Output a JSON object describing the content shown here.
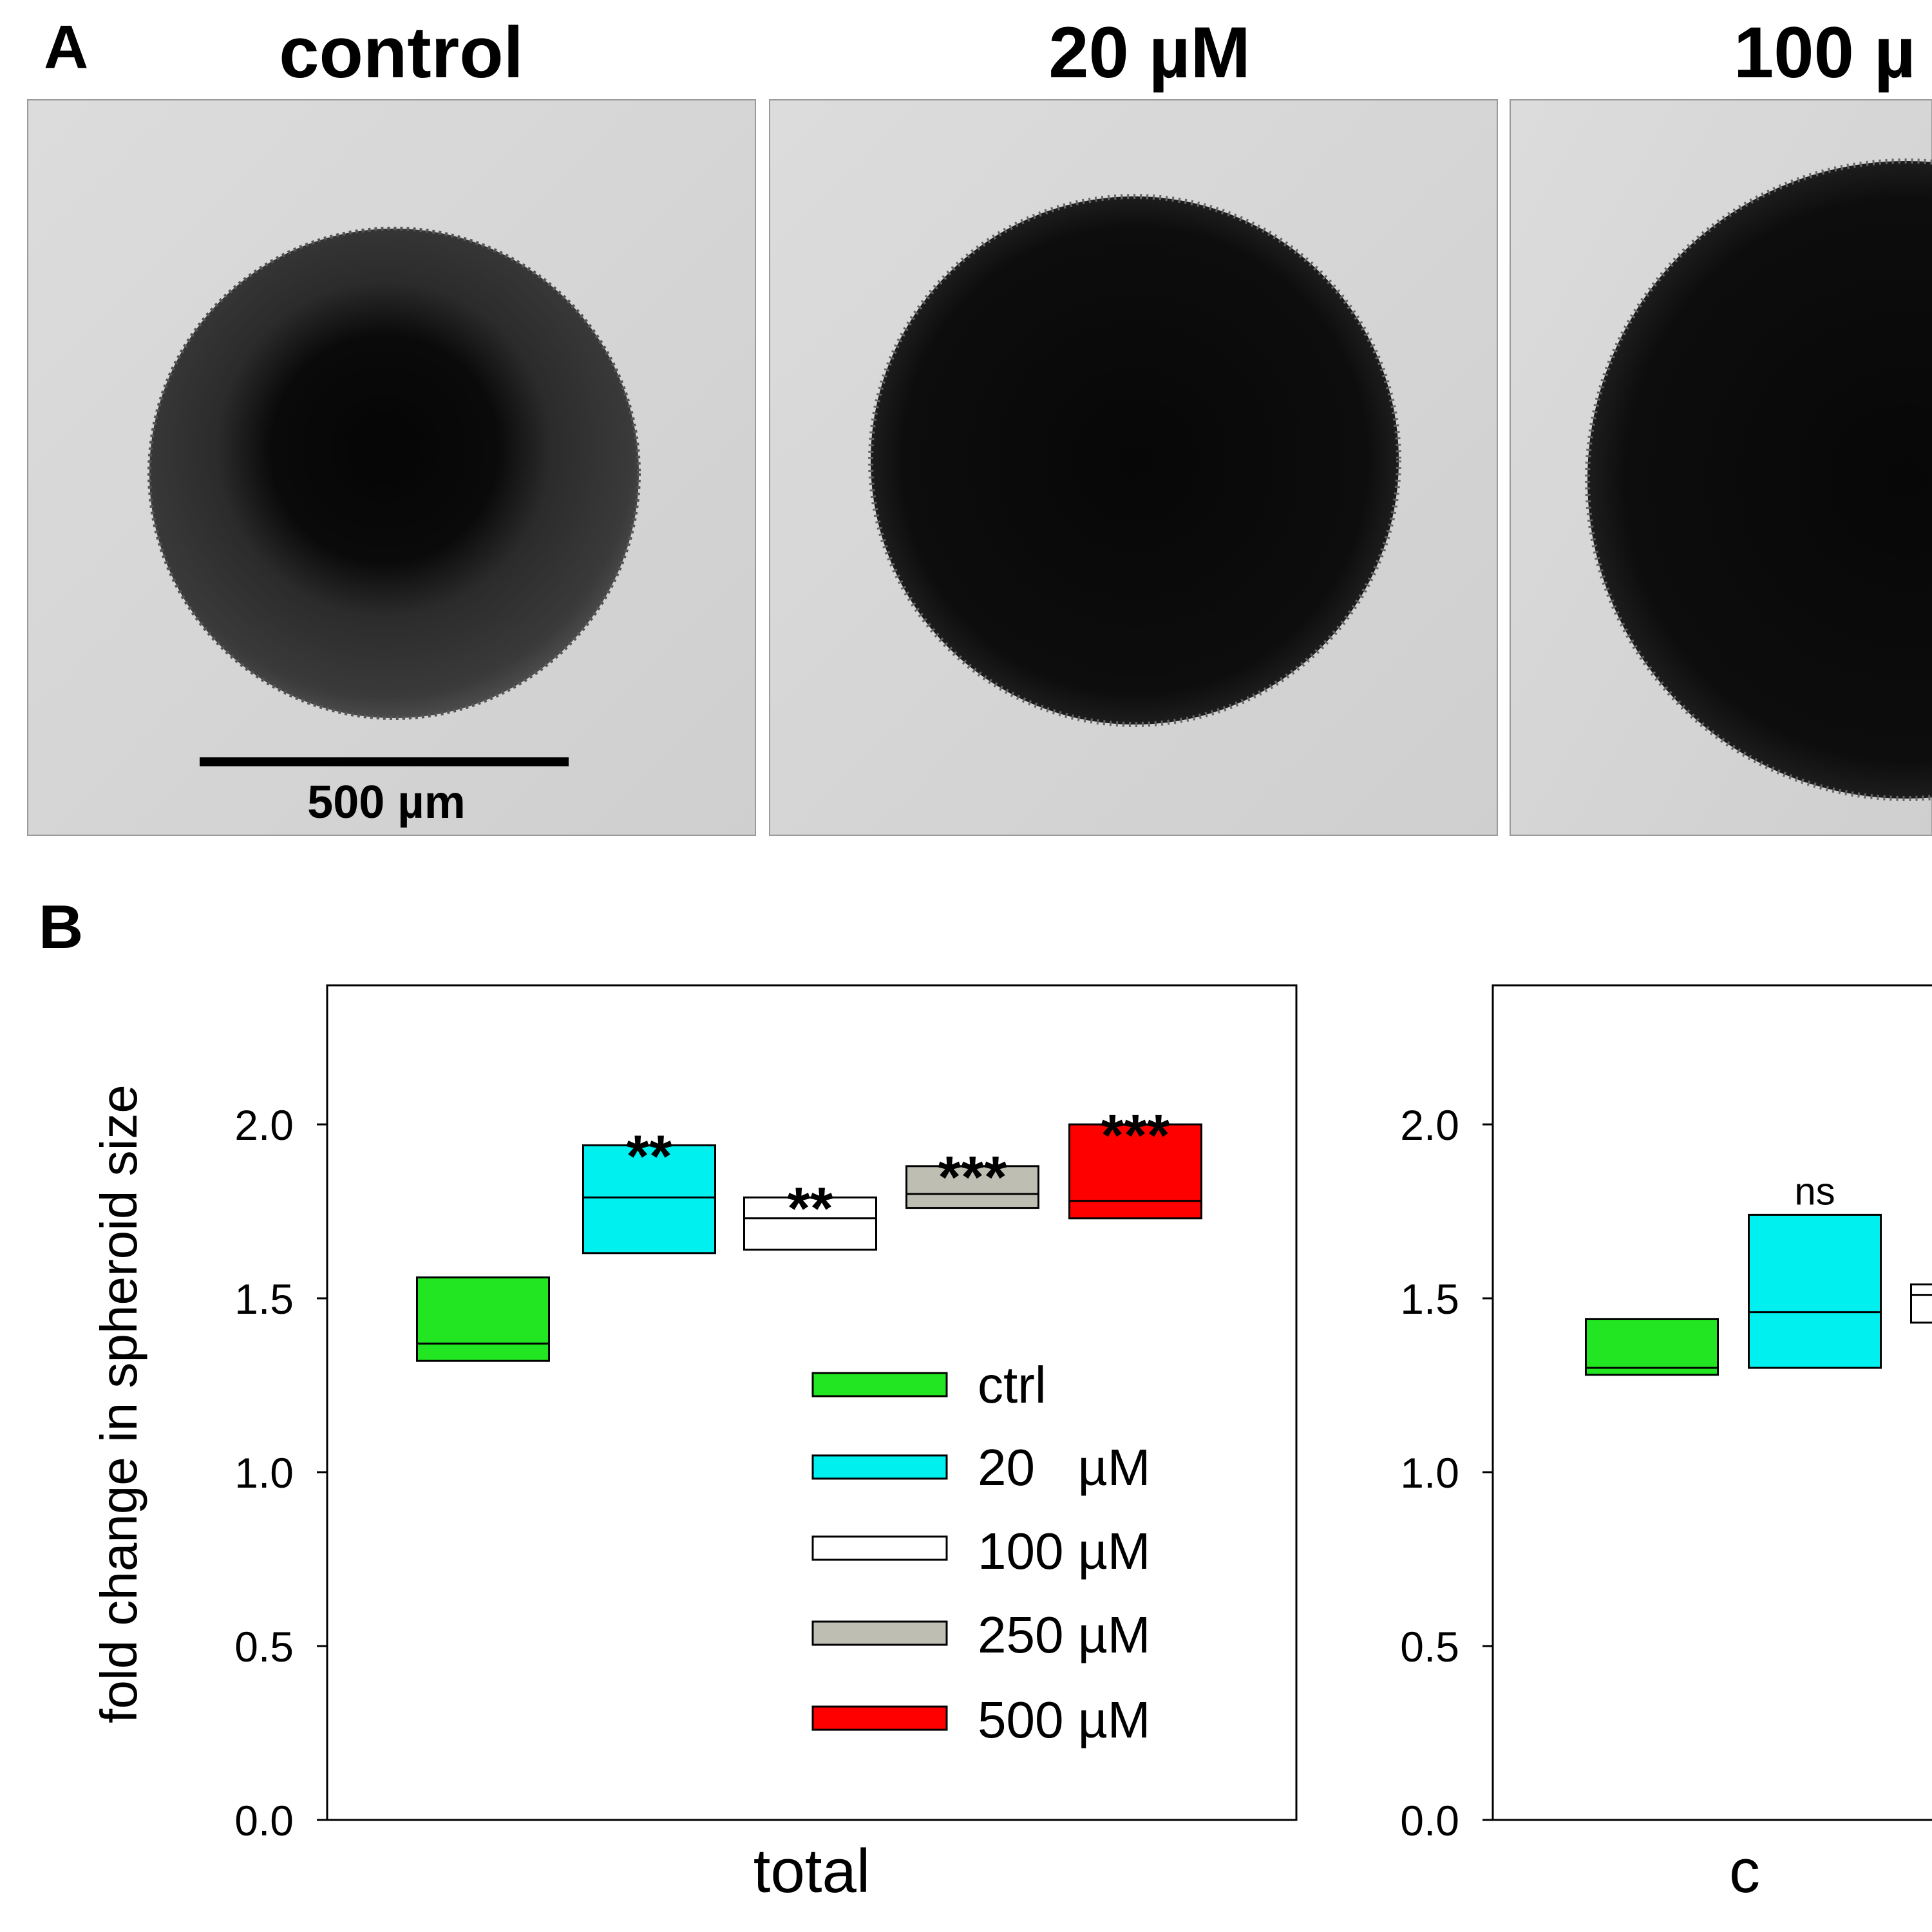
{
  "panel_a": {
    "letter": "A",
    "columns": [
      {
        "label": "control"
      },
      {
        "label": "20 µM"
      },
      {
        "label": "100 µ"
      }
    ],
    "scale_bar": {
      "label": "500 µm"
    }
  },
  "panel_b": {
    "letter": "B",
    "y_axis_label": "fold change in spheroid size",
    "legend": [
      {
        "label": "ctrl",
        "color": "#22e622"
      },
      {
        "label": "20   µM",
        "color": "#00f0f0"
      },
      {
        "label": "100 µM",
        "color": "#ffffff"
      },
      {
        "label": "250 µM",
        "color": "#bebeb3"
      },
      {
        "label": "500 µM",
        "color": "#ff0000"
      }
    ]
  },
  "chart_data": [
    {
      "type": "box",
      "xlabel": "total",
      "ylim": [
        0,
        2.4
      ],
      "yticks": [
        0.0,
        0.5,
        1.0,
        1.5,
        2.0
      ],
      "ytick_labels": [
        "0.0",
        "0.5",
        "1.0",
        "1.5",
        "2.0"
      ],
      "grid": false,
      "legend_position": "bottom-right",
      "series": [
        {
          "name": "ctrl",
          "color": "#22e622",
          "q1": 1.32,
          "median": 1.37,
          "q3": 1.56,
          "significance": ""
        },
        {
          "name": "20   µM",
          "color": "#00f0f0",
          "q1": 1.63,
          "median": 1.79,
          "q3": 1.94,
          "significance": "**"
        },
        {
          "name": "100 µM",
          "color": "#ffffff",
          "q1": 1.64,
          "median": 1.73,
          "q3": 1.79,
          "significance": "**"
        },
        {
          "name": "250 µM",
          "color": "#bebeb3",
          "q1": 1.76,
          "median": 1.8,
          "q3": 1.88,
          "significance": "***"
        },
        {
          "name": "500 µM",
          "color": "#ff0000",
          "q1": 1.73,
          "median": 1.78,
          "q3": 2.0,
          "significance": "***"
        }
      ]
    },
    {
      "type": "box",
      "xlabel": "c",
      "ylim": [
        0,
        2.4
      ],
      "yticks": [
        0.0,
        0.5,
        1.0,
        1.5,
        2.0
      ],
      "ytick_labels": [
        "0.0",
        "0.5",
        "1.0",
        "1.5",
        "2.0"
      ],
      "grid": false,
      "series": [
        {
          "name": "ctrl",
          "color": "#22e622",
          "q1": 1.28,
          "median": 1.3,
          "q3": 1.44,
          "significance": ""
        },
        {
          "name": "20   µM",
          "color": "#00f0f0",
          "q1": 1.3,
          "median": 1.46,
          "q3": 1.74,
          "significance": "ns"
        },
        {
          "name": "100 µM",
          "color": "#ffffff",
          "q1": 1.43,
          "median": 1.51,
          "q3": 1.54,
          "significance": ""
        }
      ]
    }
  ]
}
